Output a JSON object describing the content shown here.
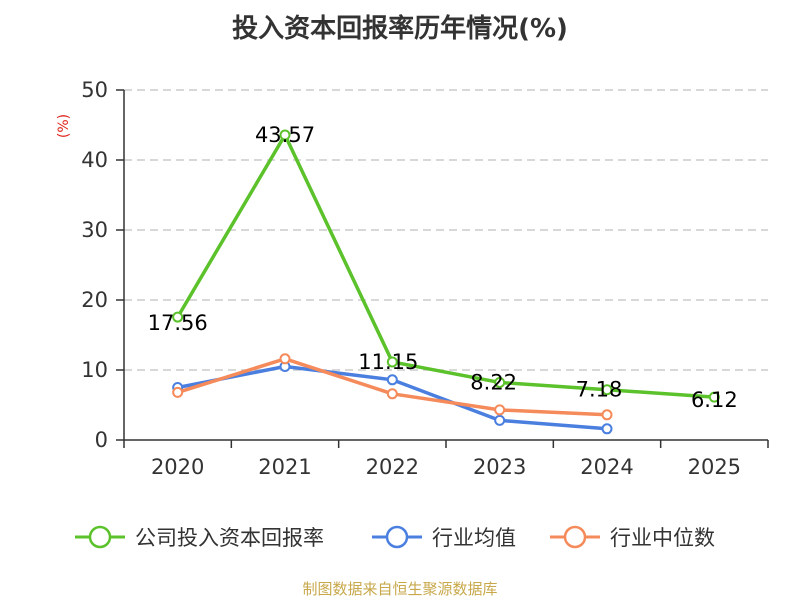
{
  "chart_data": {
    "type": "line",
    "title": "投入资本回报率历年情况(%)",
    "ylabel": "(%)",
    "categories": [
      "2020",
      "2021",
      "2022",
      "2023",
      "2024",
      "2025"
    ],
    "ylim": [
      0,
      50
    ],
    "yticks": [
      0,
      10,
      20,
      30,
      40,
      50
    ],
    "grid": true,
    "legend_position": "bottom",
    "series": [
      {
        "name": "公司投入资本回报率",
        "color": "#5cc22b",
        "values": [
          17.56,
          43.57,
          11.15,
          8.22,
          7.18,
          6.12
        ],
        "labels": [
          "17.56",
          "43.57",
          "11.15",
          "8.22",
          "7.18",
          "6.12"
        ]
      },
      {
        "name": "行业均值",
        "color": "#4a7fe0",
        "values": [
          7.5,
          10.5,
          8.6,
          2.8,
          1.6,
          null
        ]
      },
      {
        "name": "行业中位数",
        "color": "#f58a5b",
        "values": [
          6.8,
          11.6,
          6.6,
          4.3,
          3.6,
          null
        ]
      }
    ]
  },
  "source": "制图数据来自恒生聚源数据库"
}
